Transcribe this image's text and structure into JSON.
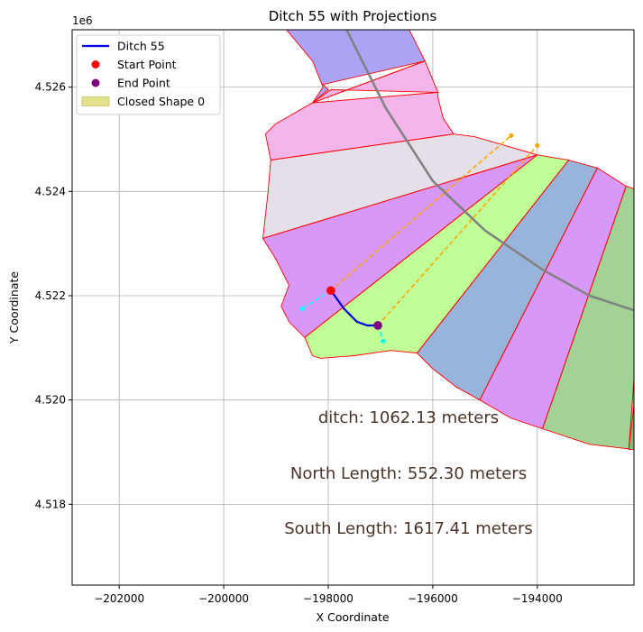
{
  "chart_data": {
    "type": "scatter",
    "title": "Ditch 55 with Projections",
    "xlabel": "X Coordinate",
    "ylabel": "Y Coordinate",
    "y_offset_label": "1e6",
    "xlim": [
      -202900,
      -192150
    ],
    "ylim": [
      4516450,
      4527100
    ],
    "xticks": [
      -202000,
      -200000,
      -198000,
      -196000,
      -194000
    ],
    "xtick_labels": [
      "−202000",
      "−200000",
      "−198000",
      "−196000",
      "−194000"
    ],
    "yticks": [
      4518000,
      4520000,
      4522000,
      4524000,
      4526000
    ],
    "ytick_labels": [
      "4.518",
      "4.520",
      "4.522",
      "4.524",
      "4.526"
    ],
    "grid": true,
    "legend_position": "top-left",
    "legend": [
      {
        "label": "Ditch 55",
        "kind": "line",
        "color": "#0000dd"
      },
      {
        "label": "Start Point",
        "kind": "dot",
        "color": "#ff0000"
      },
      {
        "label": "End Point",
        "kind": "dot",
        "color": "#800080"
      },
      {
        "label": "Closed Shape 0",
        "kind": "patch",
        "color": "#e2e08a"
      }
    ],
    "shapes": [
      {
        "fill": "#ada3f5",
        "points": [
          [
            -198300,
            4527100
          ],
          [
            -196450,
            4527100
          ],
          [
            -196150,
            4526500
          ],
          [
            -198100,
            4526050
          ],
          [
            -198000,
            4525950
          ],
          [
            -198300,
            4525700
          ],
          [
            -198100,
            4526000
          ],
          [
            -198300,
            4526500
          ],
          [
            -198800,
            4527100
          ]
        ]
      },
      {
        "fill": "#f3b5ea",
        "points": [
          [
            -198300,
            4525700
          ],
          [
            -196150,
            4526500
          ],
          [
            -195900,
            4525900
          ],
          [
            -197950,
            4525950
          ]
        ]
      },
      {
        "fill": "#f3b5ea",
        "points": [
          [
            -199200,
            4525100
          ],
          [
            -199000,
            4525300
          ],
          [
            -198300,
            4525700
          ],
          [
            -195900,
            4525900
          ],
          [
            -195900,
            4525800
          ],
          [
            -195800,
            4525400
          ],
          [
            -195600,
            4525100
          ],
          [
            -199100,
            4524600
          ]
        ]
      },
      {
        "fill": "#e5dfe9",
        "points": [
          [
            -199100,
            4524600
          ],
          [
            -195600,
            4525100
          ],
          [
            -195200,
            4525050
          ],
          [
            -194000,
            4524700
          ],
          [
            -199250,
            4523100
          ],
          [
            -199150,
            4524000
          ]
        ]
      },
      {
        "fill": "#d898f8",
        "points": [
          [
            -199250,
            4523100
          ],
          [
            -194000,
            4524700
          ],
          [
            -198450,
            4521200
          ],
          [
            -198750,
            4521500
          ],
          [
            -198900,
            4521800
          ],
          [
            -198750,
            4522200
          ],
          [
            -199000,
            4522700
          ]
        ]
      },
      {
        "fill": "#c0fe98",
        "points": [
          [
            -198450,
            4521200
          ],
          [
            -194000,
            4524700
          ],
          [
            -193400,
            4524600
          ],
          [
            -196300,
            4520900
          ],
          [
            -196800,
            4520950
          ],
          [
            -197500,
            4520850
          ],
          [
            -198150,
            4520800
          ],
          [
            -198300,
            4520850
          ]
        ]
      },
      {
        "fill": "#99b4db",
        "points": [
          [
            -196300,
            4520900
          ],
          [
            -193400,
            4524600
          ],
          [
            -192850,
            4524450
          ],
          [
            -195100,
            4520000
          ],
          [
            -195550,
            4520250
          ],
          [
            -196000,
            4520600
          ]
        ]
      },
      {
        "fill": "#d898f8",
        "points": [
          [
            -195100,
            4520000
          ],
          [
            -192850,
            4524450
          ],
          [
            -192300,
            4524100
          ],
          [
            -193900,
            4519450
          ],
          [
            -194500,
            4519650
          ]
        ]
      },
      {
        "fill": "#a2d296",
        "points": [
          [
            -193900,
            4519450
          ],
          [
            -192300,
            4524100
          ],
          [
            -192150,
            4524050
          ],
          [
            -192150,
            4519050
          ],
          [
            -193000,
            4519150
          ]
        ]
      },
      {
        "fill": "#80bb79",
        "points": [
          [
            -192250,
            4519050
          ],
          [
            -192150,
            4519050
          ],
          [
            -192150,
            4519900
          ]
        ]
      }
    ],
    "divider_lines": [
      [
        [
          -198300,
          4525700
        ],
        [
          -196150,
          4526500
        ]
      ],
      [
        [
          -199100,
          4524600
        ],
        [
          -195600,
          4525100
        ]
      ],
      [
        [
          -199250,
          4523100
        ],
        [
          -194000,
          4524700
        ]
      ],
      [
        [
          -198450,
          4521200
        ],
        [
          -194000,
          4524700
        ]
      ],
      [
        [
          -196300,
          4520900
        ],
        [
          -193400,
          4524600
        ]
      ],
      [
        [
          -195100,
          4520000
        ],
        [
          -192850,
          4524450
        ]
      ],
      [
        [
          -193900,
          4519450
        ],
        [
          -192300,
          4524100
        ]
      ],
      [
        [
          -192250,
          4519050
        ],
        [
          -192150,
          4520400
        ]
      ]
    ],
    "arc": [
      [
        -197650,
        4527100
      ],
      [
        -196900,
        4525600
      ],
      [
        -196000,
        4524200
      ],
      [
        -195000,
        4523250
      ],
      [
        -193900,
        4522500
      ],
      [
        -193000,
        4522000
      ],
      [
        -192150,
        4521720
      ]
    ],
    "ditch": {
      "name": "Ditch 55",
      "points": [
        [
          -197950,
          4522100
        ],
        [
          -197700,
          4521750
        ],
        [
          -197450,
          4521500
        ],
        [
          -197250,
          4521430
        ],
        [
          -197050,
          4521430
        ]
      ]
    },
    "start_point": [
      -197950,
      4522100
    ],
    "end_point": [
      -197050,
      4521430
    ],
    "projections": [
      {
        "from": [
          -197950,
          4522100
        ],
        "to": [
          -194500,
          4525070
        ],
        "color": "#ffa500",
        "end_color": "#ffa500"
      },
      {
        "from": [
          -197050,
          4521430
        ],
        "to": [
          -194000,
          4524880
        ],
        "color": "#ffa500",
        "end_color": "#ffa500"
      },
      {
        "from": [
          -197950,
          4522100
        ],
        "to": [
          -198500,
          4521750
        ],
        "color": "#00ffff",
        "end_color": "#00ffff"
      },
      {
        "from": [
          -197050,
          4521430
        ],
        "to": [
          -196950,
          4521130
        ],
        "color": "#00ffff",
        "end_color": "#00ffff"
      }
    ],
    "annotations": [
      "ditch: 1062.13 meters",
      "North Length: 552.30 meters",
      "South Length: 1617.41 meters"
    ]
  }
}
